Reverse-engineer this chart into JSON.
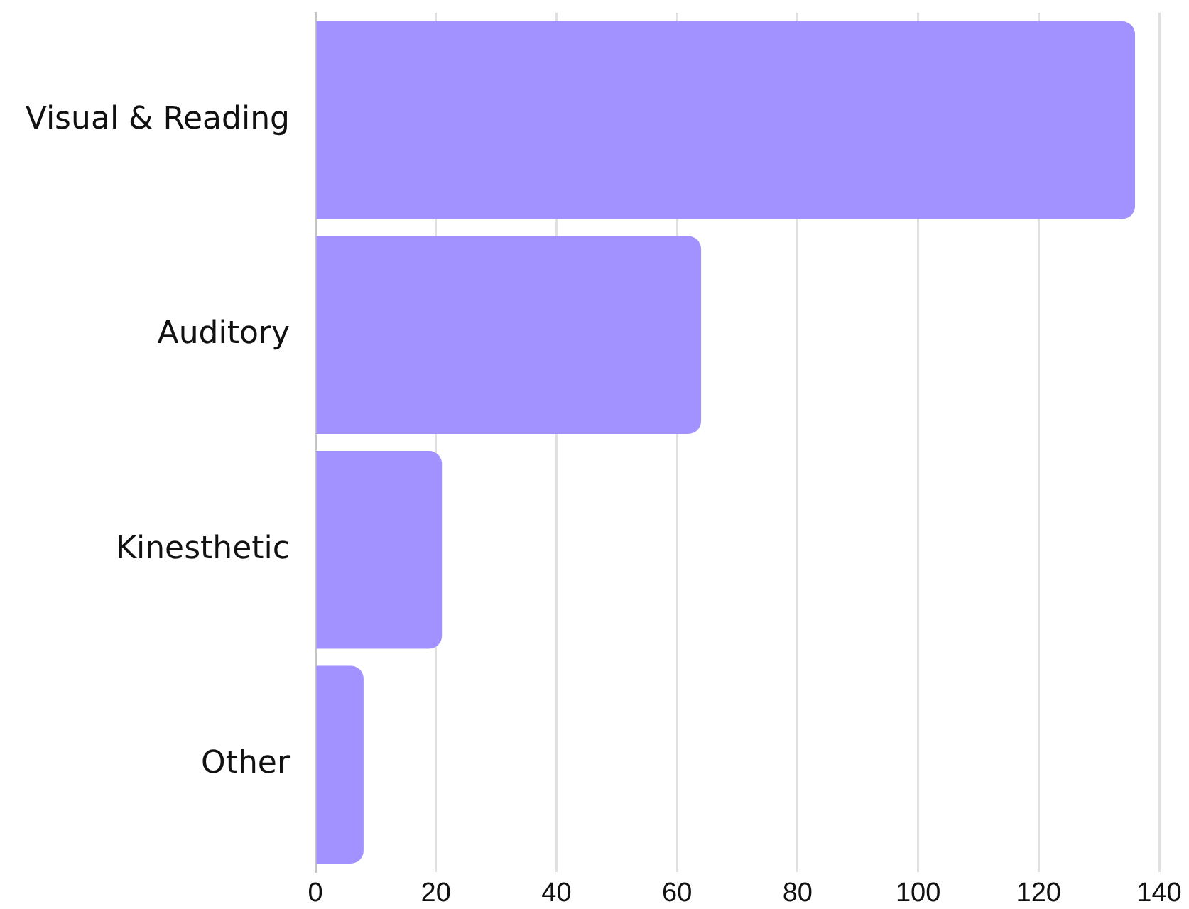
{
  "chart_data": {
    "type": "bar",
    "orientation": "horizontal",
    "categories": [
      "Visual & Reading",
      "Auditory",
      "Kinesthetic",
      "Other"
    ],
    "values": [
      136,
      64,
      21,
      8
    ],
    "color": "#a192ff",
    "xlim": [
      0,
      140
    ],
    "xticks": [
      0,
      20,
      40,
      60,
      80,
      100,
      120,
      140
    ],
    "grid": "x"
  }
}
